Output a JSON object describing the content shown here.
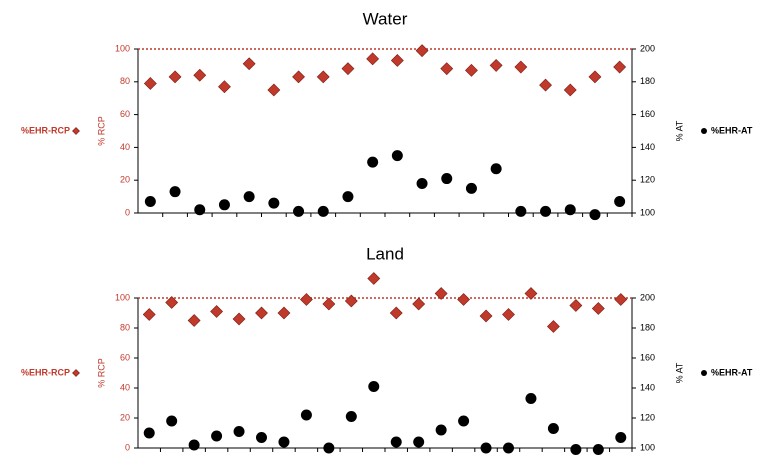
{
  "chart_data": [
    {
      "type": "dot",
      "title": "Water",
      "ylabel": "% RCP",
      "y2label": "% AT",
      "categories": [
        null,
        null,
        null,
        null,
        null,
        null,
        null,
        null,
        null,
        null,
        null,
        null,
        null,
        null,
        null,
        null,
        null,
        null,
        null,
        null
      ],
      "series": [
        {
          "name": "%EHR-RCP",
          "color": "#c0392b",
          "marker": "diamond",
          "values": [
            79,
            83,
            84,
            77,
            91,
            75,
            83,
            83,
            88,
            94,
            93,
            99,
            88,
            87,
            90,
            89,
            78,
            75,
            83,
            89
          ]
        },
        {
          "name": "%EHR-AT",
          "color": "#000000",
          "marker": "circle",
          "axis": "y2",
          "values": [
            107,
            113,
            102,
            105,
            110,
            106,
            101,
            101,
            110,
            131,
            135,
            118,
            121,
            115,
            127,
            101,
            101,
            102,
            99,
            107
          ]
        }
      ],
      "ylim": [
        0,
        100
      ],
      "yticks": [
        0,
        20,
        40,
        60,
        80,
        100
      ],
      "y2lim": [
        100,
        200
      ],
      "y2ticks": [
        100,
        120,
        140,
        160,
        180,
        200
      ],
      "reference_line": 100
    },
    {
      "type": "dot",
      "title": "Land",
      "ylabel": "% RCP",
      "y2label": "% AT",
      "categories": [
        null,
        null,
        null,
        null,
        null,
        null,
        null,
        null,
        null,
        null,
        null,
        null,
        null,
        null,
        null,
        null,
        null,
        null,
        null,
        null,
        null,
        null
      ],
      "series": [
        {
          "name": "%EHR-RCP",
          "color": "#c0392b",
          "marker": "diamond",
          "values": [
            89,
            97,
            85,
            91,
            86,
            90,
            90,
            99,
            96,
            98,
            113,
            90,
            96,
            103,
            99,
            88,
            89,
            103,
            81,
            95,
            93,
            99
          ]
        },
        {
          "name": "%EHR-AT",
          "color": "#000000",
          "marker": "circle",
          "axis": "y2",
          "values": [
            110,
            118,
            102,
            108,
            111,
            107,
            104,
            122,
            100,
            121,
            141,
            104,
            104,
            112,
            118,
            100,
            100,
            133,
            113,
            99,
            99,
            107
          ]
        }
      ],
      "ylim": [
        0,
        100
      ],
      "yticks": [
        0,
        20,
        40,
        60,
        80,
        100
      ],
      "y2lim": [
        100,
        200
      ],
      "y2ticks": [
        100,
        120,
        140,
        160,
        180,
        200
      ],
      "reference_line": 100
    }
  ]
}
